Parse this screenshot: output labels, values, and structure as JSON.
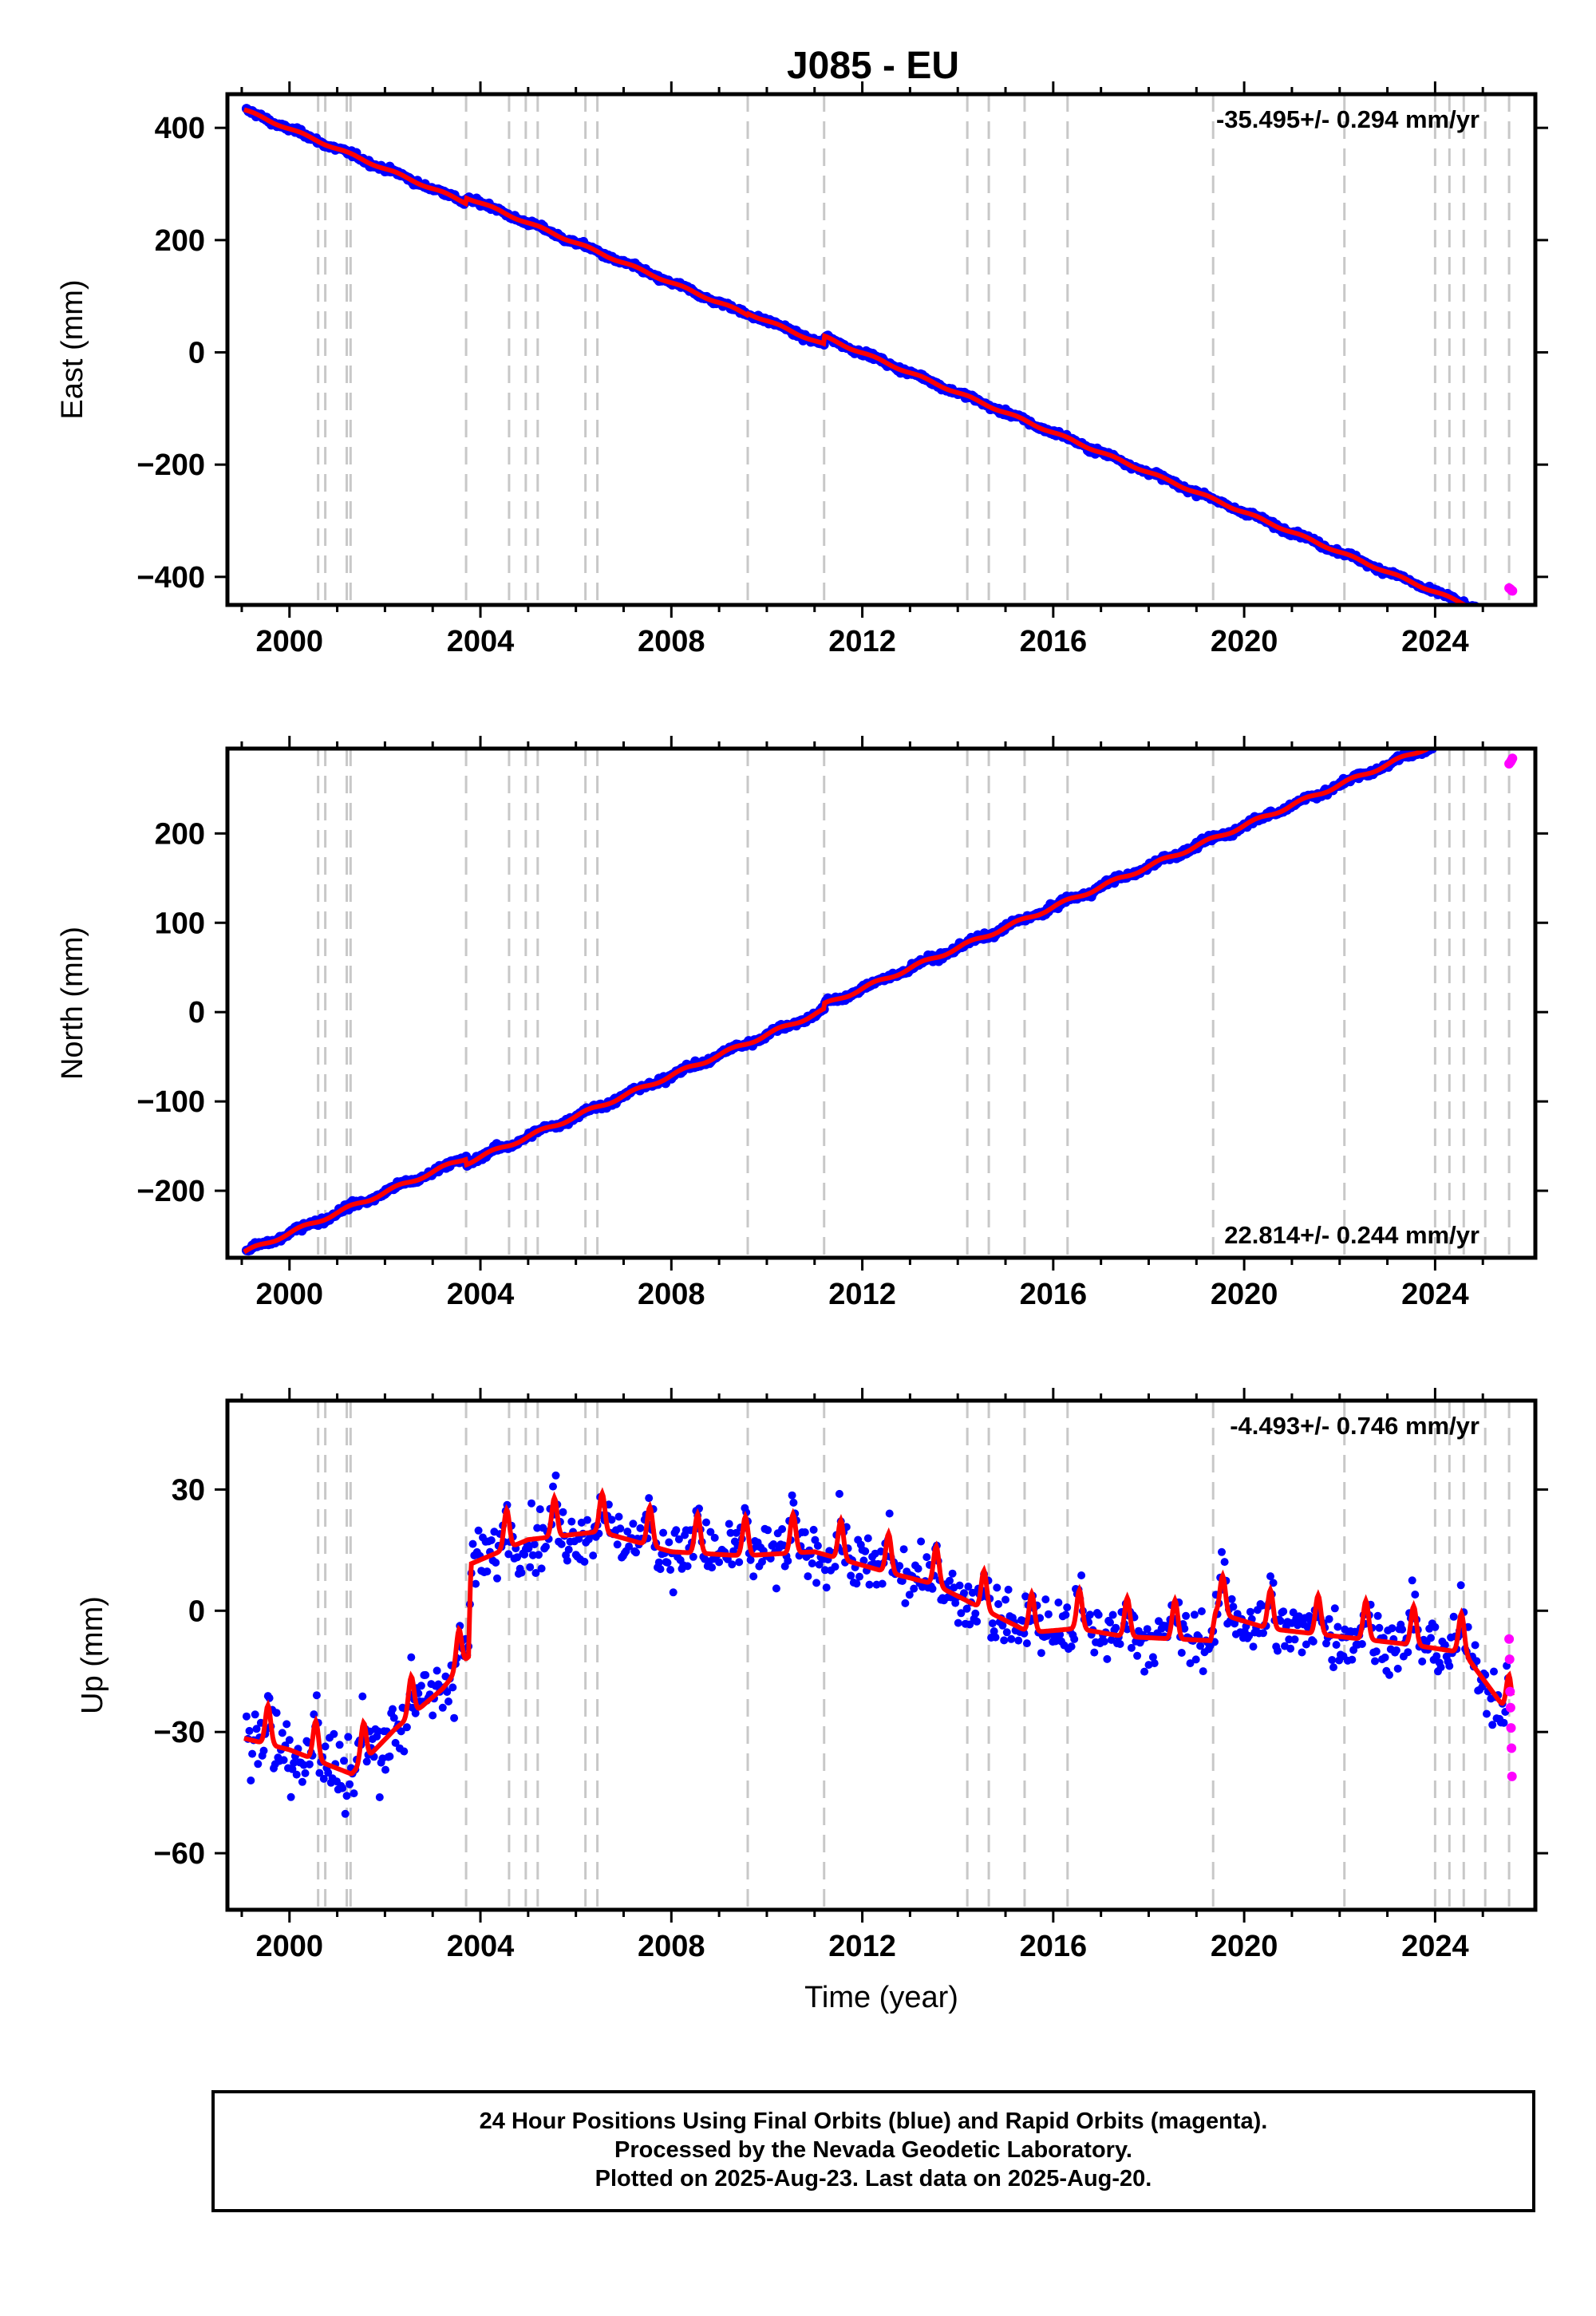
{
  "title": "J085 - EU",
  "colors": {
    "final_orbits": "#0000ff",
    "rapid_orbits": "#ff00ff",
    "model": "#ff0000",
    "breaks": "#c8c8c8",
    "frame": "#000000"
  },
  "chart_data": [
    {
      "type": "scatter",
      "name": "east",
      "ylabel": "East (mm)",
      "xlabel": "",
      "rate_label": "-35.495+/- 0.294 mm/yr",
      "rate_position": "top-right",
      "xlim": [
        1998.7,
        2026.1
      ],
      "ylim": [
        -450,
        460
      ],
      "xticks": [
        2000,
        2004,
        2008,
        2012,
        2016,
        2020,
        2024
      ],
      "yticks": [
        400,
        200,
        0,
        -200,
        -400
      ],
      "ytick_labels": [
        "400",
        "200",
        "0",
        "−200",
        "−400"
      ],
      "trend": {
        "start_year": 1999.1,
        "start_value": 430,
        "rate": -35.495
      },
      "offsets": [
        {
          "from_year": 2003.7,
          "shift": 10
        },
        {
          "from_year": 2009.6,
          "shift": 3
        },
        {
          "from_year": 2011.2,
          "shift": 14
        }
      ],
      "seasonal_amplitude": 2,
      "noise": 4,
      "rapid_points": [
        [
          2025.55,
          -420
        ],
        [
          2025.58,
          -422
        ],
        [
          2025.6,
          -424
        ],
        [
          2025.62,
          -425
        ]
      ]
    },
    {
      "type": "scatter",
      "name": "north",
      "ylabel": "North (mm)",
      "xlabel": "",
      "rate_label": "22.814+/- 0.244 mm/yr",
      "rate_position": "bottom-right",
      "xlim": [
        1998.7,
        2026.1
      ],
      "ylim": [
        -275,
        295
      ],
      "xticks": [
        2000,
        2004,
        2008,
        2012,
        2016,
        2020,
        2024
      ],
      "yticks": [
        200,
        100,
        0,
        -100,
        -200
      ],
      "ytick_labels": [
        "200",
        "100",
        "0",
        "−100",
        "−200"
      ],
      "trend": {
        "start_year": 1999.1,
        "start_value": -268,
        "rate": 22.814
      },
      "offsets": [
        {
          "from_year": 2003.7,
          "shift": -6
        },
        {
          "from_year": 2011.2,
          "shift": 6
        }
      ],
      "seasonal_amplitude": 2,
      "noise": 3,
      "rapid_points": [
        [
          2025.55,
          278
        ],
        [
          2025.58,
          280
        ],
        [
          2025.6,
          282
        ],
        [
          2025.62,
          284
        ]
      ]
    },
    {
      "type": "scatter",
      "name": "up",
      "ylabel": "Up (mm)",
      "xlabel": "Time (year)",
      "rate_label": "-4.493+/- 0.746 mm/yr",
      "rate_position": "top-right",
      "xlim": [
        1998.7,
        2026.1
      ],
      "ylim": [
        -74,
        52
      ],
      "xticks": [
        2000,
        2004,
        2008,
        2012,
        2016,
        2020,
        2024
      ],
      "yticks": [
        30,
        0,
        -30,
        -60
      ],
      "ytick_labels": [
        "30",
        "0",
        "−30",
        "−60"
      ],
      "model_knots": [
        [
          1999.0,
          -29
        ],
        [
          2000.0,
          -32
        ],
        [
          2001.3,
          -38
        ],
        [
          2002.2,
          -27
        ],
        [
          2003.2,
          -17
        ],
        [
          2003.75,
          -9
        ],
        [
          2003.8,
          14
        ],
        [
          2005.0,
          20
        ],
        [
          2006.5,
          22
        ],
        [
          2008.0,
          17
        ],
        [
          2009.5,
          16
        ],
        [
          2011.0,
          17
        ],
        [
          2012.5,
          12
        ],
        [
          2013.5,
          9
        ],
        [
          2014.5,
          3
        ],
        [
          2015.5,
          -3
        ],
        [
          2016.5,
          -2
        ],
        [
          2017.5,
          -4
        ],
        [
          2019.3,
          -5
        ],
        [
          2019.4,
          2
        ],
        [
          2020.5,
          -2
        ],
        [
          2022.0,
          -4
        ],
        [
          2023.5,
          -6
        ],
        [
          2024.6,
          -8
        ],
        [
          2025.6,
          -24
        ]
      ],
      "seasonal_amplitude": 6,
      "noise": 6,
      "rapid_points": [
        [
          2025.55,
          -7
        ],
        [
          2025.56,
          -12
        ],
        [
          2025.57,
          -20
        ],
        [
          2025.58,
          -24
        ],
        [
          2025.59,
          -29
        ],
        [
          2025.6,
          -34
        ],
        [
          2025.61,
          -41
        ]
      ]
    }
  ],
  "breaks": [
    2000.6,
    2000.75,
    2001.2,
    2001.28,
    2003.7,
    2004.6,
    2004.95,
    2005.2,
    2006.2,
    2006.45,
    2009.6,
    2011.2,
    2014.2,
    2014.65,
    2015.4,
    2016.3,
    2019.35,
    2022.1,
    2024.0,
    2024.3,
    2024.6,
    2025.05,
    2025.55
  ],
  "footer": {
    "line1": "24 Hour Positions Using Final Orbits (blue) and Rapid Orbits (magenta).",
    "line2": "Processed by the Nevada Geodetic Laboratory.",
    "line3": "Plotted on 2025-Aug-23. Last data on 2025-Aug-20."
  }
}
